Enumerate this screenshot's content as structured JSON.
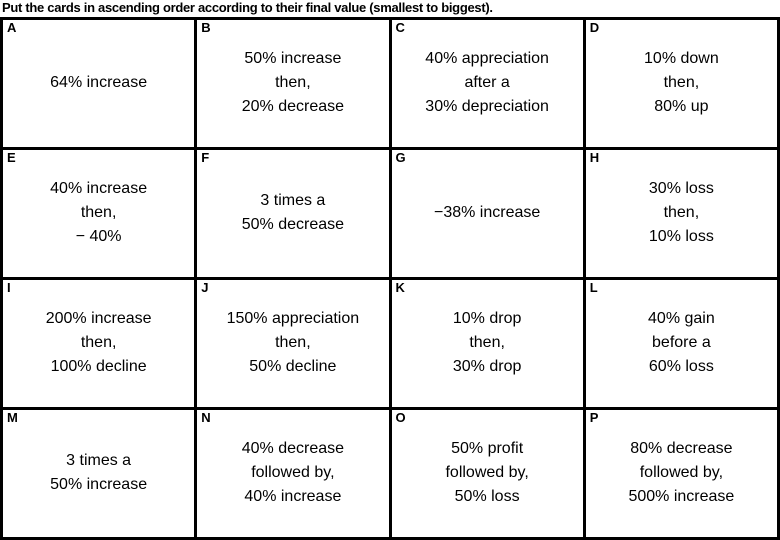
{
  "title": "Put the cards in ascending order according to their final value (smallest to biggest).",
  "colors": {
    "border": "#000000",
    "background": "#ffffff",
    "text": "#000000"
  },
  "cards": [
    {
      "label": "A",
      "lines": [
        "64% increase"
      ]
    },
    {
      "label": "B",
      "lines": [
        "50% increase",
        "then,",
        "20% decrease"
      ]
    },
    {
      "label": "C",
      "lines": [
        "40% appreciation",
        "after a",
        "30% depreciation"
      ]
    },
    {
      "label": "D",
      "lines": [
        "10% down",
        "then,",
        "80% up"
      ]
    },
    {
      "label": "E",
      "lines": [
        "40% increase",
        "then,",
        "− 40%"
      ]
    },
    {
      "label": "F",
      "lines": [
        "3 times a",
        "50% decrease"
      ]
    },
    {
      "label": "G",
      "lines": [
        "−38% increase"
      ]
    },
    {
      "label": "H",
      "lines": [
        "30% loss",
        "then,",
        "10% loss"
      ]
    },
    {
      "label": "I",
      "lines": [
        "200% increase",
        "then,",
        "100% decline"
      ]
    },
    {
      "label": "J",
      "lines": [
        "150% appreciation",
        "then,",
        "50% decline"
      ]
    },
    {
      "label": "K",
      "lines": [
        "10% drop",
        "then,",
        "30% drop"
      ]
    },
    {
      "label": "L",
      "lines": [
        "40% gain",
        "before a",
        "60% loss"
      ]
    },
    {
      "label": "M",
      "lines": [
        "3 times a",
        "50% increase"
      ]
    },
    {
      "label": "N",
      "lines": [
        "40% decrease",
        "followed by,",
        "40% increase"
      ]
    },
    {
      "label": "O",
      "lines": [
        "50% profit",
        "followed by,",
        "50% loss"
      ]
    },
    {
      "label": "P",
      "lines": [
        "80% decrease",
        "followed by,",
        "500% increase"
      ]
    }
  ]
}
